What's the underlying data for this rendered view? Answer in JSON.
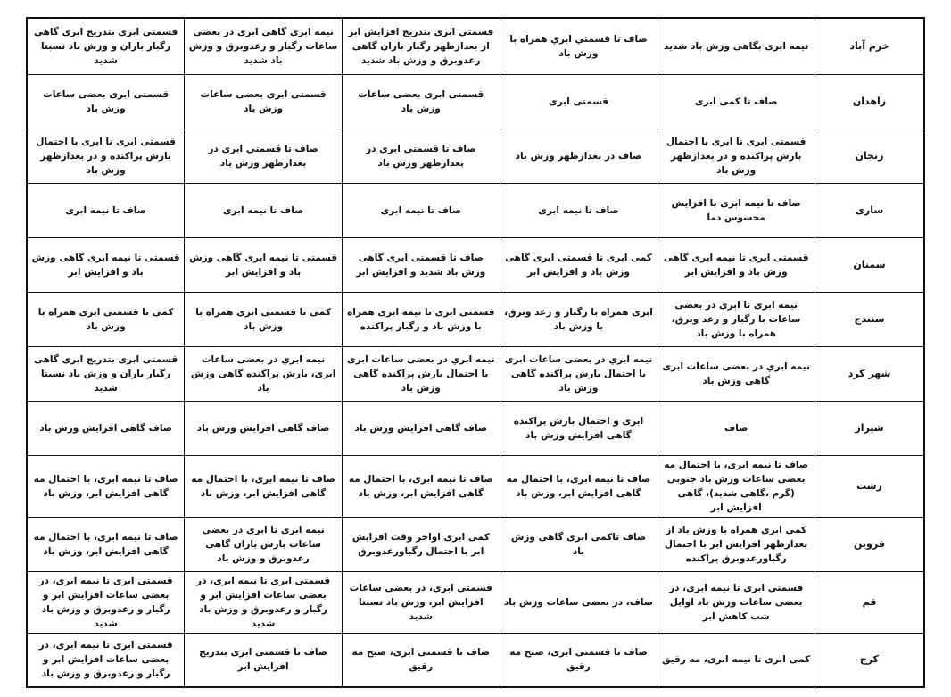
{
  "rows": [
    {
      "city": "خرم آباد",
      "cells": [
        "نیمه ابری بگاهی وزش باد شدید",
        "صاف تا قسمتي ابري همراه با وزش باد",
        "قسمتی ابری بتدریج افزایش ابر از بعدازظهر رگبار باران گاهی رعدوبرق و وزش باد شدید",
        "نیمه ابری گاهی ابری در بعضی ساعات رگبار و رعدوبرق و وزش باد شدید",
        "قسمتی ابری بتدریج ابری گاهی رگبار باران و وزش باد نسبتا شدید"
      ]
    },
    {
      "city": "زاهدان",
      "cells": [
        "صاف تا کمی ابری",
        "قسمتی ابری",
        "قسمتی ابری بعضی ساعات وزش باد",
        "قسمتی ابری بعضی ساعات وزش باد",
        "قسمتی ابری بعضی ساعات وزش باد"
      ]
    },
    {
      "city": "زنجان",
      "cells": [
        "قسمتی ابری تا ابری با احتمال بارش پراکنده و در بعدازظهر وزش باد",
        "صاف در بعدازظهر وزش باد",
        "صاف تا قسمتی ابری در بعدازظهر وزش باد",
        "صاف تا قسمتی ابری در بعدازظهر وزش باد",
        "قسمتی ابری تا ابری با احتمال بارش پراکنده و در بعدازظهر وزش باد"
      ]
    },
    {
      "city": "ساری",
      "cells": [
        "صاف تا نیمه ابری با افزایش محسوس دما",
        "صاف تا نیمه ابری",
        "صاف تا نیمه ابری",
        "صاف تا نیمه ابری",
        "صاف تا نیمه ابری"
      ]
    },
    {
      "city": "سمنان",
      "cells": [
        "قسمتی ابری تا نیمه ابری گاهی وزش باد و افزایش ابر",
        "کمی ابری تا قسمتی ابری گاهی وزش باد و افزایش ابر",
        "صاف تا قسمتی ابری گاهی وزش باد شدید و افزایش ابر",
        "قسمتی تا نیمه ابری گاهی وزش باد و افزایش ابر",
        "قسمتی تا نیمه ابری گاهی وزش باد و افزایش ابر"
      ]
    },
    {
      "city": "سنندج",
      "cells": [
        "نیمه ابری تا ابری در بعضی ساعات با رگبار و رعد وبرق، همراه با وزش باد",
        "ابری همراه با رگبار و رعد وبرق، با وزش باد",
        "قسمتی ابری تا نیمه ابری همراه با وزش باد و رگبار پراکنده",
        "کمی تا قسمتی ابری همراه با وزش باد",
        "کمی تا قسمتی ابری همراه با وزش باد"
      ]
    },
    {
      "city": "شهر کرد",
      "cells": [
        "نیمه ابري در بعضی ساعات ابری گاهی وزش باد",
        "نیمه ابري در بعضی ساعات ابری با احتمال بارش پراکنده گاهی وزش باد",
        "نیمه ابري در بعضی ساعات ابری با احتمال بارش پراکنده گاهی وزش باد",
        "نیمه ابري در بعضی ساعات ابری، بارش پراکنده گاهی وزش باد",
        "قسمتی ابری بتدریج ابری گاهی رگبار باران و وزش باد نسبتا شدید"
      ]
    },
    {
      "city": "شیراز",
      "cells": [
        "صاف",
        "ابری و احتمال بارش پراکنده گاهی افزایش وزش باد",
        "صاف گاهی افزایش وزش باد",
        "صاف گاهی افزایش وزش باد",
        "صاف گاهی افزایش وزش باد"
      ]
    },
    {
      "city": "رشت",
      "cells": [
        "صاف تا نیمه ابری، با احتمال مه بعضی ساعات  وزش باد جنوبی (گرم ،گاهی شدید)، گاهی افزایش ابر",
        "صاف تا نیمه ابری، با احتمال مه گاهی افزایش ابر، وزش باد",
        "صاف تا نیمه ابری، با احتمال مه گاهی افزایش ابر، وزش باد",
        "صاف تا نیمه ابری، با احتمال مه گاهی افزایش ابر، وزش باد",
        "صاف تا نیمه ابری، با احتمال مه گاهی افزایش ابر، وزش باد"
      ]
    },
    {
      "city": "قزوین",
      "cells": [
        "کمی ابری همراه با وزش باد از بعدازظهر افزایش ابر با احتمال رگباورعدوبرق پراکنده",
        "صاف تاکمی ابری گاهی وزش باد",
        "کمی ابری اواخر وقت افزایش ابر با احتمال رگباورعدوبرق",
        "نیمه ابری تا ابری در بعضی ساعات بارش باران گاهی رعدوبرق و وزش باد",
        "صاف تا نیمه ابری، با احتمال مه گاهی افزایش ابر، وزش باد"
      ]
    },
    {
      "city": "قم",
      "cells": [
        "قسمتی ابری تا نیمه ابری، در بعضی ساعات وزش باد اوایل شب کاهش ابر",
        "صاف، در بعضی ساعات وزش باد",
        "قسمتی ابری، در بعضی ساعات افزایش ابر، وزش باد نسبتا شدید",
        "قسمتی ابری تا نیمه ابری، در بعضی ساعات افزایش ابر و رگبار و رعدوبرق و وزش باد شدید",
        "قسمتی ابری تا نیمه ابری، در بعضی ساعات افزایش ابر و رگبار و رعدوبرق و وزش باد شدید"
      ]
    },
    {
      "city": "کرج",
      "cells": [
        "کمی ابری تا نیمه ابری، مه رقیق",
        "صاف تا قسمتی ابری، صبح مه رقیق",
        "صاف تا قسمتی ابری، صبح مه رقیق",
        "صاف تا قسمتی ابری بتدریج افزایش ابر",
        "قسمتی ابری تا نیمه ابری، در بعضی ساعات افزایش ابر و رگبار و رعدوبرق و وزش باد"
      ]
    }
  ]
}
